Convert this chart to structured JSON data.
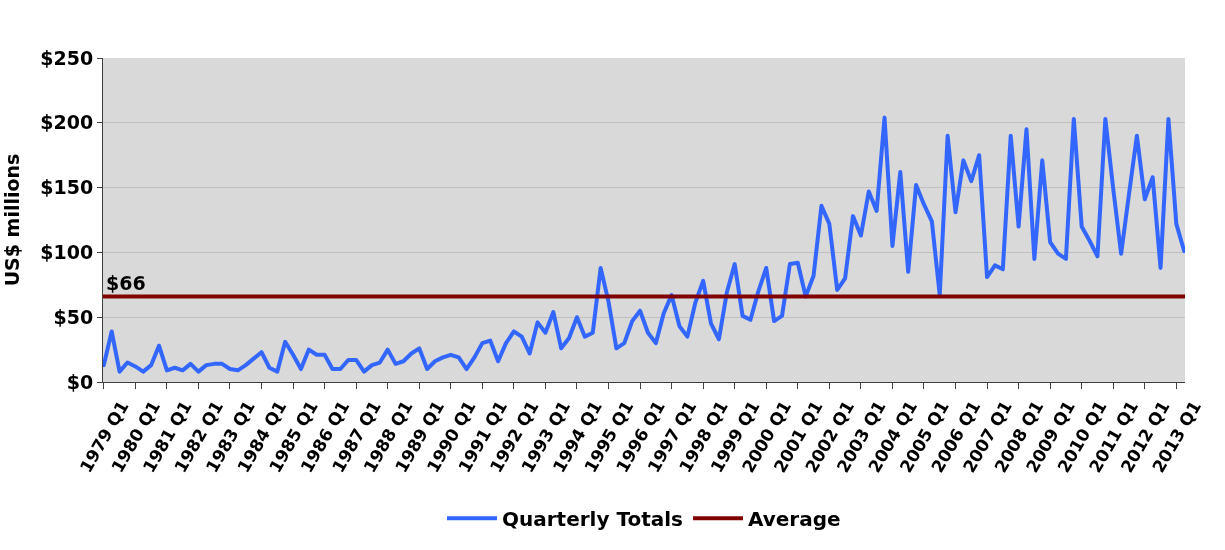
{
  "chart_data": {
    "type": "line",
    "ylabel": "US$ millions",
    "categories": [
      "1979 Q1",
      null,
      null,
      null,
      "1980 Q1",
      null,
      null,
      null,
      "1981 Q1",
      null,
      null,
      null,
      "1982 Q1",
      null,
      null,
      null,
      "1983 Q1",
      null,
      null,
      null,
      "1984 Q1",
      null,
      null,
      null,
      "1985 Q1",
      null,
      null,
      null,
      "1986 Q1",
      null,
      null,
      null,
      "1987 Q1",
      null,
      null,
      null,
      "1988 Q1",
      null,
      null,
      null,
      "1989 Q1",
      null,
      null,
      null,
      "1990 Q1",
      null,
      null,
      null,
      "1991 Q1",
      null,
      null,
      null,
      "1992 Q1",
      null,
      null,
      null,
      "1993 Q1",
      null,
      null,
      null,
      "1994 Q1",
      null,
      null,
      null,
      "1995 Q1",
      null,
      null,
      null,
      "1996 Q1",
      null,
      null,
      null,
      "1997 Q1",
      null,
      null,
      null,
      "1998 Q1",
      null,
      null,
      null,
      "1999 Q1",
      null,
      null,
      null,
      "2000 Q1",
      null,
      null,
      null,
      "2001 Q1",
      null,
      null,
      null,
      "2002 Q1",
      null,
      null,
      null,
      "2003 Q1",
      null,
      null,
      null,
      "2004 Q1",
      null,
      null,
      null,
      "2005 Q1",
      null,
      null,
      null,
      "2006 Q1",
      null,
      null,
      null,
      "2007 Q1",
      null,
      null,
      null,
      "2008 Q1",
      null,
      null,
      null,
      "2009 Q1",
      null,
      null,
      null,
      "2010 Q1",
      null,
      null,
      null,
      "2011 Q1",
      null,
      null,
      null,
      "2012 Q1",
      null,
      null,
      null,
      "2013 Q1",
      null
    ],
    "series": [
      {
        "name": "Quarterly Totals",
        "color": "#3366ff",
        "values": [
          13,
          39,
          8,
          15,
          12,
          8,
          13,
          28,
          9,
          11,
          9,
          14,
          8,
          13,
          14,
          14,
          10,
          9,
          13,
          18,
          23,
          11,
          8,
          31,
          21,
          10,
          25,
          21,
          21,
          10,
          10,
          17,
          17,
          8,
          13,
          15,
          25,
          14,
          16,
          22,
          26,
          10,
          16,
          19,
          21,
          19,
          10,
          19,
          30,
          32,
          16,
          30,
          39,
          35,
          22,
          46,
          38,
          54,
          26,
          34,
          50,
          35,
          38,
          88,
          62,
          26,
          30,
          47,
          55,
          38,
          30,
          53,
          67,
          43,
          35,
          61,
          78,
          45,
          33,
          69,
          91,
          51,
          48,
          70,
          88,
          47,
          51,
          91,
          92,
          66,
          82,
          136,
          122,
          71,
          80,
          128,
          113,
          147,
          132,
          204,
          105,
          162,
          85,
          152,
          137,
          124,
          67,
          190,
          131,
          171,
          155,
          175,
          81,
          90,
          87,
          190,
          120,
          195,
          95,
          171,
          108,
          99,
          95,
          203,
          120,
          109,
          97,
          203,
          149,
          99,
          145,
          190,
          141,
          158,
          88,
          203,
          122,
          101
        ]
      },
      {
        "name": "Average",
        "color": "#800000",
        "values": [
          66,
          66,
          66,
          66,
          66,
          66,
          66,
          66,
          66,
          66,
          66,
          66,
          66,
          66,
          66,
          66,
          66,
          66,
          66,
          66,
          66,
          66,
          66,
          66,
          66,
          66,
          66,
          66,
          66,
          66,
          66,
          66,
          66,
          66,
          66,
          66,
          66,
          66,
          66,
          66,
          66,
          66,
          66,
          66,
          66,
          66,
          66,
          66,
          66,
          66,
          66,
          66,
          66,
          66,
          66,
          66,
          66,
          66,
          66,
          66,
          66,
          66,
          66,
          66,
          66,
          66,
          66,
          66,
          66,
          66,
          66,
          66,
          66,
          66,
          66,
          66,
          66,
          66,
          66,
          66,
          66,
          66,
          66,
          66,
          66,
          66,
          66,
          66,
          66,
          66,
          66,
          66,
          66,
          66,
          66,
          66,
          66,
          66,
          66,
          66,
          66,
          66,
          66,
          66,
          66,
          66,
          66,
          66,
          66,
          66,
          66,
          66,
          66,
          66,
          66,
          66,
          66,
          66,
          66,
          66,
          66,
          66,
          66,
          66,
          66,
          66,
          66,
          66,
          66,
          66,
          66,
          66,
          66,
          66,
          66,
          66,
          66,
          66
        ]
      }
    ],
    "annotations": [
      {
        "text": "$66",
        "x": "1979 Q1",
        "y": 66
      }
    ],
    "ylim": [
      0,
      250
    ],
    "yticks": [
      {
        "value": 0,
        "label": "$0"
      },
      {
        "value": 50,
        "label": "$50"
      },
      {
        "value": 100,
        "label": "$100"
      },
      {
        "value": 150,
        "label": "$150"
      },
      {
        "value": 200,
        "label": "$200"
      },
      {
        "value": 250,
        "label": "$250"
      }
    ],
    "grid": "y",
    "legend": "bottom",
    "marker": "none",
    "line_style": "solid"
  }
}
